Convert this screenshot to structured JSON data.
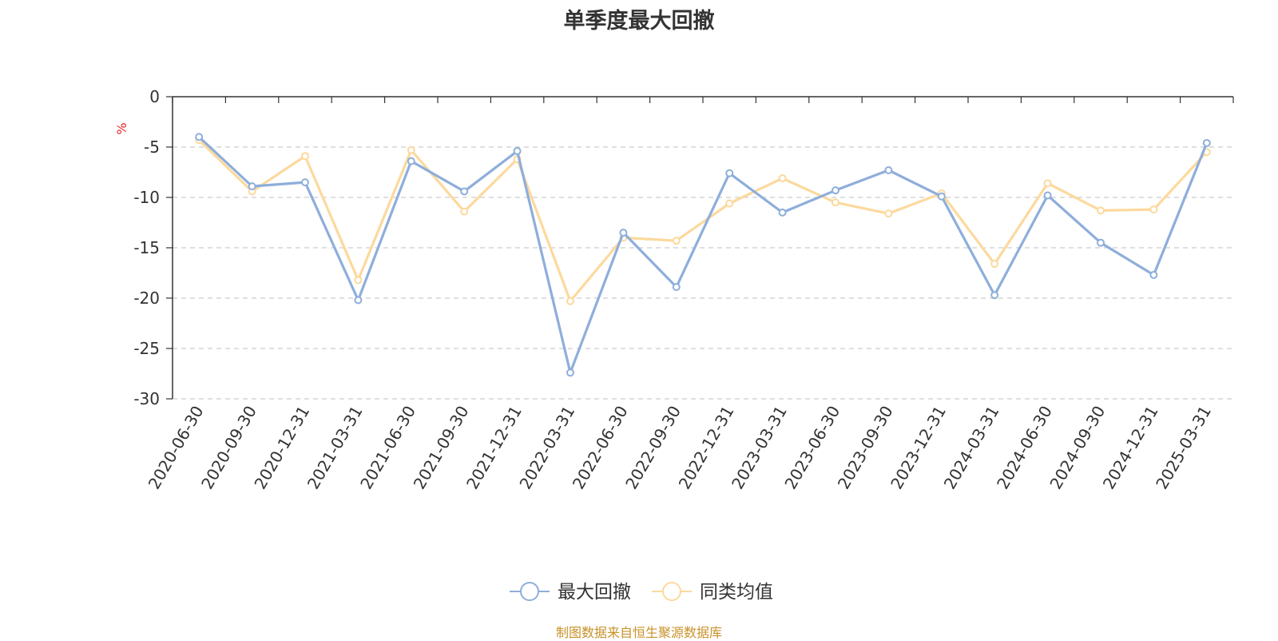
{
  "chart_data": {
    "type": "line",
    "title": "单季度最大回撤",
    "ylabel": "%",
    "ylim": [
      -30,
      0
    ],
    "yticks": [
      0,
      -5,
      -10,
      -15,
      -20,
      -25,
      -30
    ],
    "grid": true,
    "legend_position": "bottom-center",
    "categories": [
      "2020-06-30",
      "2020-09-30",
      "2020-12-31",
      "2021-03-31",
      "2021-06-30",
      "2021-09-30",
      "2021-12-31",
      "2022-03-31",
      "2022-06-30",
      "2022-09-30",
      "2022-12-31",
      "2023-03-31",
      "2023-06-30",
      "2023-09-30",
      "2023-12-31",
      "2024-03-31",
      "2024-06-30",
      "2024-09-30",
      "2024-12-31",
      "2025-03-31"
    ],
    "series": [
      {
        "name": "最大回撤",
        "color": "#8eaedb",
        "values": [
          -4.0,
          -8.9,
          -8.5,
          -20.2,
          -6.4,
          -9.4,
          -5.4,
          -27.4,
          -13.5,
          -18.9,
          -7.6,
          -11.5,
          -9.3,
          -7.3,
          -9.9,
          -19.7,
          -9.8,
          -14.5,
          -17.7,
          -4.6
        ]
      },
      {
        "name": "同类均值",
        "color": "#fcd99d",
        "values": [
          -4.3,
          -9.4,
          -5.9,
          -18.2,
          -5.3,
          -11.4,
          -6.2,
          -20.3,
          -14.0,
          -14.3,
          -10.6,
          -8.1,
          -10.5,
          -11.6,
          -9.6,
          -16.6,
          -8.6,
          -11.3,
          -11.2,
          -5.5
        ]
      }
    ]
  },
  "source_note": "制图数据来自恒生聚源数据库",
  "colors": {
    "axis": "#333333",
    "grid": "#cccccc",
    "ylabel": "#e8262b",
    "source": "#c8922a"
  }
}
